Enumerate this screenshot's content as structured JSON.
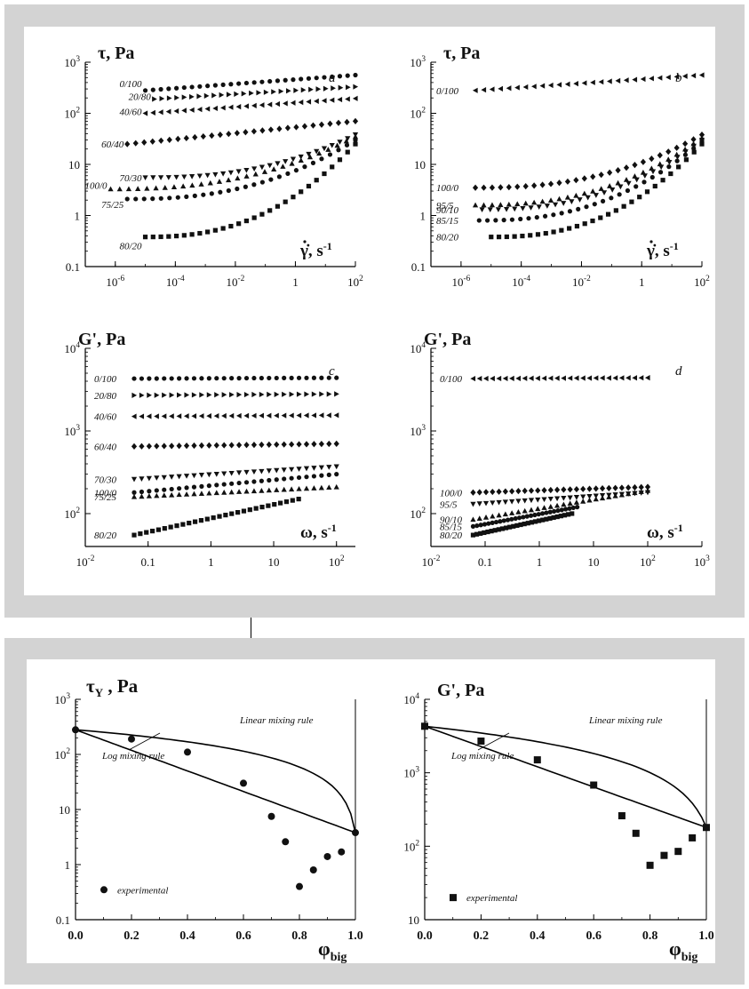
{
  "panels": [
    {
      "id": "a",
      "letter": "a",
      "ylabel": "τ, Pa",
      "xlabel": "γ̇, s",
      "xexp": "-1",
      "ylim": [
        0.1,
        1000
      ],
      "xlim": [
        1e-07,
        100
      ],
      "yticks": [
        "0.1",
        "1",
        "10",
        "10^2",
        "10^3"
      ],
      "xticks": [
        "10^-6",
        "10^-4",
        "10^-2",
        "1",
        "10^2"
      ]
    },
    {
      "id": "b",
      "letter": "b",
      "ylabel": "τ, Pa",
      "xlabel": "γ̇, s",
      "xexp": "-1",
      "ylim": [
        0.1,
        1000
      ],
      "xlim": [
        1e-07,
        100
      ],
      "yticks": [
        "0.1",
        "1",
        "10",
        "10^2",
        "10^3"
      ],
      "xticks": [
        "10^-6",
        "10^-4",
        "10^-2",
        "1",
        "10^2"
      ]
    },
    {
      "id": "c",
      "letter": "c",
      "ylabel": "G', Pa",
      "xlabel": "ω, s",
      "xexp": "-1",
      "ylim": [
        40,
        10000
      ],
      "xlim": [
        0.01,
        200
      ],
      "yticks": [
        "10^2",
        "10^3",
        "10^4"
      ],
      "xticks": [
        "10^-2",
        "0.1",
        "1",
        "10",
        "10^2"
      ]
    },
    {
      "id": "d",
      "letter": "d",
      "ylabel": "G', Pa",
      "xlabel": "ω, s",
      "xexp": "-1",
      "ylim": [
        40,
        10000
      ],
      "xlim": [
        0.01,
        1000
      ],
      "yticks": [
        "10^2",
        "10^3",
        "10^4"
      ],
      "xticks": [
        "10^-2",
        "0.1",
        "1",
        "10",
        "10^2",
        "10^3"
      ]
    },
    {
      "id": "e",
      "ylabel": "τ_Y , Pa",
      "xlabel": "φ_big",
      "ylim": [
        0.1,
        1000
      ],
      "xlim": [
        0,
        1
      ],
      "yticks": [
        "0.1",
        "1",
        "10",
        "10^2",
        "10^3"
      ],
      "xticks": [
        "0.0",
        "0.2",
        "0.4",
        "0.6",
        "0.8",
        "1.0"
      ],
      "annotations": {
        "linear": "Linear mixing rule",
        "log": "Log mixing rule",
        "legend": "experimental"
      }
    },
    {
      "id": "f",
      "ylabel": "G', Pa",
      "xlabel": "φ_big",
      "ylim": [
        10,
        10000
      ],
      "xlim": [
        0,
        1
      ],
      "yticks": [
        "10",
        "10^2",
        "10^3",
        "10^4"
      ],
      "xticks": [
        "0.0",
        "0.2",
        "0.4",
        "0.6",
        "0.8",
        "1.0"
      ],
      "annotations": {
        "linear": "Linear mixing rule",
        "log": "Log mixing rule",
        "legend": "experimental"
      }
    }
  ],
  "chart_data": [
    {
      "panel": "a",
      "type": "scatter",
      "xscale": "log",
      "yscale": "log",
      "title": "",
      "xlabel": "γ̇, s-1",
      "ylabel": "τ, Pa",
      "xlim": [
        1e-07,
        100
      ],
      "ylim": [
        0.1,
        1000
      ],
      "series": [
        {
          "name": "0/100",
          "marker": "circle",
          "xmin": 1e-05,
          "xmax": 100,
          "ystart": 280,
          "yend": 560
        },
        {
          "name": "20/80",
          "marker": "tri-right",
          "xmin": 2e-05,
          "xmax": 100,
          "ystart": 190,
          "yend": 330
        },
        {
          "name": "40/60",
          "marker": "tri-left",
          "xmin": 1e-05,
          "xmax": 100,
          "ystart": 100,
          "yend": 195
        },
        {
          "name": "60/40",
          "marker": "diamond",
          "xmin": 2.5e-06,
          "xmax": 100,
          "ystart": 25,
          "yend": 70
        },
        {
          "name": "70/30",
          "marker": "tri-down",
          "xmin": 1e-05,
          "xmax": 100,
          "ystart": 5.5,
          "yend": 38
        },
        {
          "name": "100/0",
          "marker": "tri-up",
          "xmin": 7e-07,
          "xmax": 100,
          "ystart": 3.3,
          "yend": 35
        },
        {
          "name": "75/25",
          "marker": "circle",
          "xmin": 2.5e-06,
          "xmax": 100,
          "ystart": 2.1,
          "yend": 30
        },
        {
          "name": "80/20",
          "marker": "square",
          "xmin": 1e-05,
          "xmax": 100,
          "ystart": 0.38,
          "yend": 25
        }
      ]
    },
    {
      "panel": "b",
      "type": "scatter",
      "xscale": "log",
      "yscale": "log",
      "title": "",
      "xlabel": "γ̇, s-1",
      "ylabel": "τ, Pa",
      "xlim": [
        1e-07,
        100
      ],
      "ylim": [
        0.1,
        1000
      ],
      "series": [
        {
          "name": "0/100",
          "marker": "tri-left",
          "xmin": 3e-06,
          "xmax": 100,
          "ystart": 280,
          "yend": 560
        },
        {
          "name": "100/0",
          "marker": "diamond",
          "xmin": 3e-06,
          "xmax": 100,
          "ystart": 3.5,
          "yend": 38
        },
        {
          "name": "95/5",
          "marker": "tri-up",
          "xmin": 3e-06,
          "xmax": 100,
          "ystart": 1.6,
          "yend": 33
        },
        {
          "name": "90/10",
          "marker": "tri-down",
          "xmin": 5e-06,
          "xmax": 100,
          "ystart": 1.3,
          "yend": 30
        },
        {
          "name": "85/15",
          "marker": "circle",
          "xmin": 4e-06,
          "xmax": 100,
          "ystart": 0.8,
          "yend": 28
        },
        {
          "name": "80/20",
          "marker": "square",
          "xmin": 1e-05,
          "xmax": 100,
          "ystart": 0.38,
          "yend": 25
        }
      ]
    },
    {
      "panel": "c",
      "type": "scatter",
      "xscale": "log",
      "yscale": "log",
      "title": "",
      "xlabel": "ω, s-1",
      "ylabel": "G', Pa",
      "xlim": [
        0.01,
        200
      ],
      "ylim": [
        40,
        10000
      ],
      "series": [
        {
          "name": "0/100",
          "marker": "circle",
          "xmin": 0.06,
          "xmax": 100,
          "ystart": 4300,
          "yend": 4400
        },
        {
          "name": "20/80",
          "marker": "tri-right",
          "xmin": 0.06,
          "xmax": 100,
          "ystart": 2700,
          "yend": 2800
        },
        {
          "name": "40/60",
          "marker": "tri-left",
          "xmin": 0.06,
          "xmax": 100,
          "ystart": 1500,
          "yend": 1550
        },
        {
          "name": "60/40",
          "marker": "diamond",
          "xmin": 0.06,
          "xmax": 100,
          "ystart": 650,
          "yend": 700
        },
        {
          "name": "70/30",
          "marker": "tri-down",
          "xmin": 0.06,
          "xmax": 100,
          "ystart": 260,
          "yend": 370
        },
        {
          "name": "100/0",
          "marker": "circle",
          "xmin": 0.06,
          "xmax": 100,
          "ystart": 180,
          "yend": 300
        },
        {
          "name": "75/25",
          "marker": "tri-up",
          "xmin": 0.06,
          "xmax": 100,
          "ystart": 160,
          "yend": 210
        },
        {
          "name": "80/20",
          "marker": "square",
          "xmin": 0.06,
          "xmax": 25,
          "ystart": 55,
          "yend": 150
        }
      ]
    },
    {
      "panel": "d",
      "type": "scatter",
      "xscale": "log",
      "yscale": "log",
      "title": "",
      "xlabel": "ω, s-1",
      "ylabel": "G', Pa",
      "xlim": [
        0.01,
        1000
      ],
      "ylim": [
        40,
        10000
      ],
      "series": [
        {
          "name": "0/100",
          "marker": "tri-left",
          "xmin": 0.06,
          "xmax": 100,
          "ystart": 4300,
          "yend": 4400
        },
        {
          "name": "100/0",
          "marker": "diamond",
          "xmin": 0.06,
          "xmax": 100,
          "ystart": 180,
          "yend": 210
        },
        {
          "name": "95/5",
          "marker": "tri-down",
          "xmin": 0.06,
          "xmax": 100,
          "ystart": 130,
          "yend": 180
        },
        {
          "name": "90/10",
          "marker": "tri-up",
          "xmin": 0.06,
          "xmax": 100,
          "ystart": 85,
          "yend": 190
        },
        {
          "name": "85/15",
          "marker": "circle",
          "xmin": 0.06,
          "xmax": 5,
          "ystart": 70,
          "yend": 120
        },
        {
          "name": "80/20",
          "marker": "square",
          "xmin": 0.06,
          "xmax": 4,
          "ystart": 55,
          "yend": 100
        }
      ]
    },
    {
      "panel": "e",
      "type": "scatter",
      "xscale": "linear",
      "yscale": "log",
      "title": "",
      "xlabel": "φ big",
      "ylabel": "τY, Pa",
      "xlim": [
        0,
        1
      ],
      "ylim": [
        0.1,
        1000
      ],
      "series": [
        {
          "name": "experimental",
          "marker": "circle",
          "x": [
            0.0,
            0.2,
            0.4,
            0.6,
            0.7,
            0.75,
            0.8,
            0.85,
            0.9,
            0.95,
            1.0
          ],
          "y": [
            280,
            190,
            110,
            30,
            7.5,
            2.6,
            0.4,
            0.8,
            1.4,
            1.7,
            3.8
          ]
        }
      ],
      "lines": [
        {
          "name": "Linear mixing rule",
          "endpoints": {
            "x": [
              0,
              1
            ],
            "y": [
              280,
              3.8
            ]
          },
          "rule": "linear"
        },
        {
          "name": "Log mixing rule",
          "endpoints": {
            "x": [
              0,
              1
            ],
            "y": [
              280,
              3.8
            ]
          },
          "rule": "log"
        }
      ]
    },
    {
      "panel": "f",
      "type": "scatter",
      "xscale": "linear",
      "yscale": "log",
      "title": "",
      "xlabel": "φ big",
      "ylabel": "G', Pa",
      "xlim": [
        0,
        1
      ],
      "ylim": [
        10,
        10000
      ],
      "series": [
        {
          "name": "experimental",
          "marker": "square",
          "x": [
            0.0,
            0.2,
            0.4,
            0.6,
            0.7,
            0.75,
            0.8,
            0.85,
            0.9,
            0.95,
            1.0
          ],
          "y": [
            4300,
            2700,
            1500,
            680,
            260,
            150,
            55,
            75,
            85,
            130,
            180
          ]
        }
      ],
      "lines": [
        {
          "name": "Linear mixing rule",
          "endpoints": {
            "x": [
              0,
              1
            ],
            "y": [
              4300,
              180
            ]
          },
          "rule": "linear"
        },
        {
          "name": "Log mixing rule",
          "endpoints": {
            "x": [
              0,
              1
            ],
            "y": [
              4300,
              180
            ]
          },
          "rule": "log"
        }
      ]
    }
  ]
}
